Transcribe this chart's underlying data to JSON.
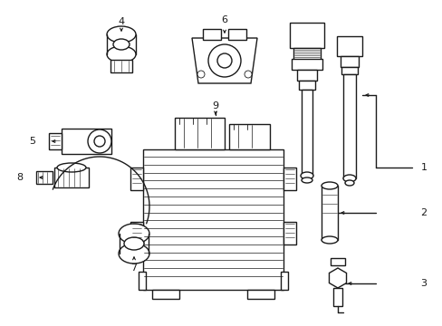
{
  "bg_color": "#ffffff",
  "line_color": "#1a1a1a",
  "lw": 0.8,
  "figsize": [
    4.89,
    3.6
  ],
  "dpi": 100,
  "xlim": [
    0,
    489
  ],
  "ylim": [
    0,
    360
  ]
}
